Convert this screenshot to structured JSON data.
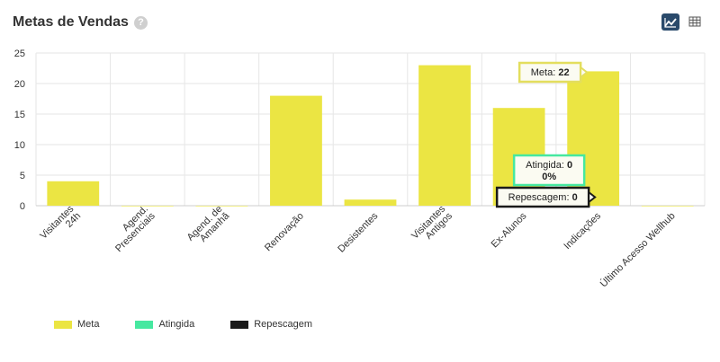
{
  "header": {
    "title": "Metas de Vendas",
    "help_icon": "?",
    "chart_view_icon": "line-chart-icon",
    "table_view_icon": "table-icon"
  },
  "chart_data": {
    "type": "bar",
    "categories": [
      [
        "Visitantes",
        "24h"
      ],
      [
        "Agend.",
        "Presenciais"
      ],
      [
        "Agend. de",
        "Amanhã"
      ],
      [
        "Renovação"
      ],
      [
        "Desistentes"
      ],
      [
        "Visitantes",
        "Antigos"
      ],
      [
        "Ex-Alunos"
      ],
      [
        "Indicações"
      ],
      [
        "Último Acesso Wellhub"
      ]
    ],
    "series": [
      {
        "name": "Meta",
        "color": "#ebe543",
        "values": [
          4,
          0,
          0,
          18,
          1,
          23,
          16,
          22,
          0
        ]
      },
      {
        "name": "Atingida",
        "color": "#46e8a0",
        "values": [
          0,
          0,
          0,
          0,
          0,
          0,
          0,
          0,
          0
        ]
      },
      {
        "name": "Repescagem",
        "color": "#1a1a1a",
        "values": [
          0,
          0,
          0,
          0,
          0,
          0,
          0,
          0,
          0
        ]
      }
    ],
    "y_ticks": [
      0,
      5,
      10,
      15,
      20,
      25
    ],
    "ylim": [
      0,
      25
    ],
    "grid": true,
    "legend_position": "bottom-left",
    "tooltips": [
      {
        "label": "Meta: ",
        "value": "22",
        "extra": "",
        "category": "Indicações",
        "border": "#e3de5e"
      },
      {
        "label": "Atingida: ",
        "value": "0",
        "extra": "0%",
        "category": "Indicações",
        "border": "#46e8a0"
      },
      {
        "label": "Repescagem: ",
        "value": "0",
        "extra": "",
        "category": "Indicações",
        "border": "#1a1a1a"
      }
    ]
  }
}
